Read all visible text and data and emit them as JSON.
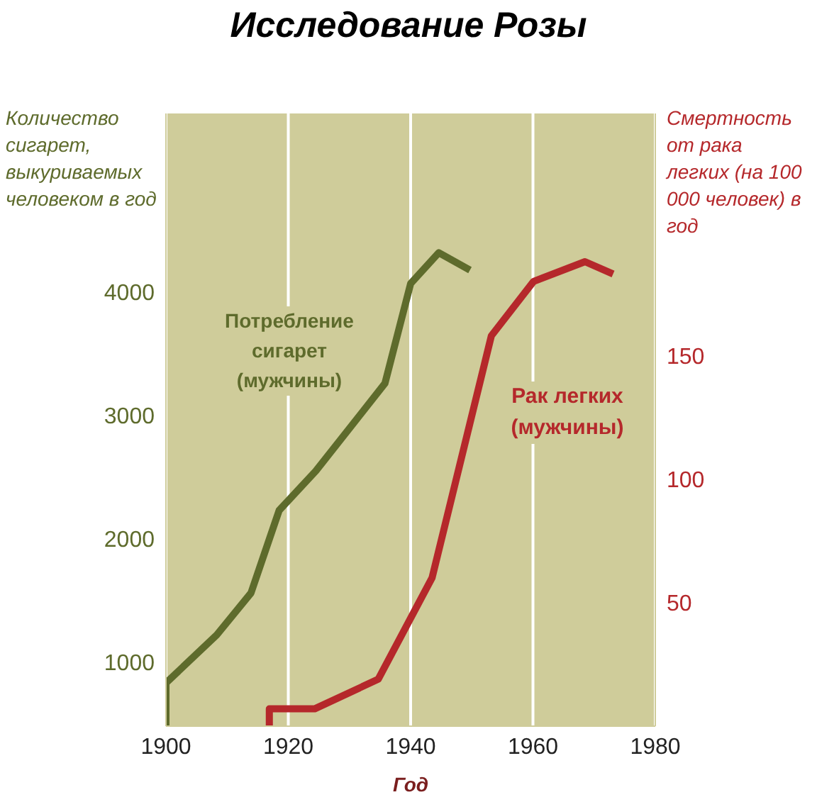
{
  "chart_data": {
    "type": "line",
    "title": "Исследование Розы",
    "xlabel": "Год",
    "ylabel": "Количество сигарет, выкуриваемых человеком в год",
    "y2label": "Смертность от рака легких (на 100 000 человек) в год",
    "xlim": [
      1900,
      1980
    ],
    "xticks": [
      1900,
      1920,
      1940,
      1960,
      1980
    ],
    "ylim": [
      480,
      5450
    ],
    "yticks": [
      1000,
      2000,
      3000,
      4000
    ],
    "y2lim": [
      0,
      248
    ],
    "y2ticks": [
      50,
      100,
      150
    ],
    "grid": "x",
    "marker": "none",
    "line_style": "solid",
    "series": [
      {
        "name": "Потребление сигарет (мужчины)",
        "color": "#5e6b2c",
        "axis": "y",
        "x": [
          1900,
          1900,
          1908.3,
          1913.9,
          1918.5,
          1924.5,
          1935.8,
          1940,
          1944.6,
          1949.7
        ],
        "values": [
          480,
          830,
          1220,
          1560,
          2230,
          2550,
          3260,
          4070,
          4320,
          4180
        ]
      },
      {
        "name": "Рак легких (мужчины)",
        "color": "#b5282b",
        "axis": "y2",
        "x": [
          1916.9,
          1916.9,
          1924.3,
          1934.7,
          1943.5,
          1953.2,
          1960.1,
          1968.5,
          1973.1
        ],
        "values": [
          0,
          7,
          7,
          19,
          60,
          158,
          180,
          188,
          183
        ]
      }
    ]
  }
}
